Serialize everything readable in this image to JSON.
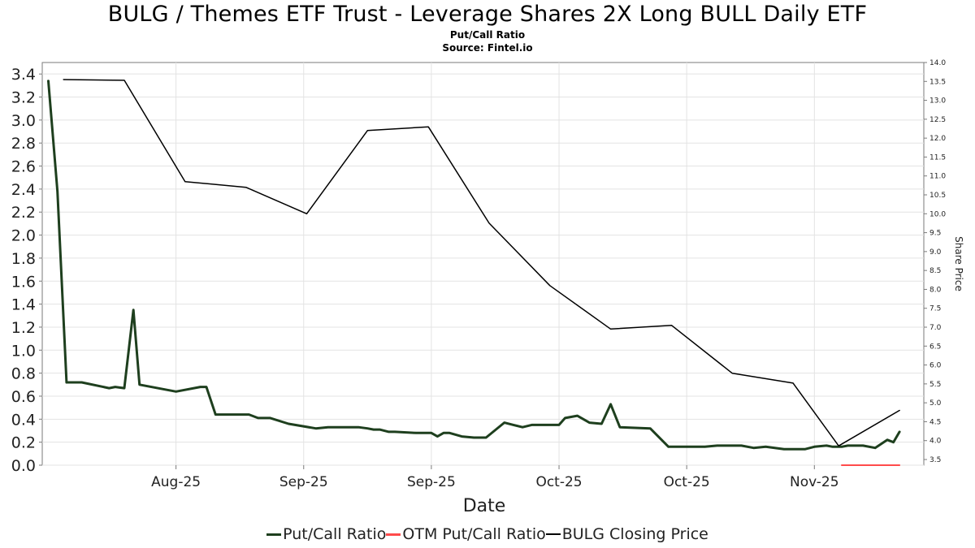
{
  "title": "BULG / Themes ETF Trust - Leverage Shares 2X Long BULL Daily ETF",
  "subtitle": "Put/Call Ratio",
  "source": "Source: Fintel.io",
  "chart_data": {
    "type": "line",
    "xlabel": "Date",
    "ylabel_left": "",
    "ylabel_right": "Share Price",
    "x_tick_labels": [
      "Aug-25",
      "Sep-25",
      "Sep-25",
      "Oct-25",
      "Oct-25",
      "Nov-25"
    ],
    "x_tick_days": [
      21,
      42,
      63,
      84,
      105,
      126
    ],
    "x_range_days": [
      -1,
      144
    ],
    "left_axis": {
      "range": [
        0,
        3.5
      ],
      "ticks": [
        0.0,
        0.2,
        0.4,
        0.6,
        0.8,
        1.0,
        1.2,
        1.4,
        1.6,
        1.8,
        2.0,
        2.2,
        2.4,
        2.6,
        2.8,
        3.0,
        3.2,
        3.4
      ]
    },
    "right_axis": {
      "range": [
        3.35,
        14.0
      ],
      "ticks": [
        3.5,
        4.0,
        4.5,
        5.0,
        5.5,
        6.0,
        6.5,
        7.0,
        7.5,
        8.0,
        8.5,
        9.0,
        9.5,
        10.0,
        10.5,
        11.0,
        11.5,
        12.0,
        12.5,
        13.0,
        13.5,
        14.0
      ]
    },
    "grid": true,
    "legend_position": "bottom-center",
    "series": [
      {
        "name": "Put/Call Ratio",
        "axis": "left",
        "color": "#1e3f1e",
        "width": 3,
        "x": [
          0,
          1.5,
          3,
          4,
          5.5,
          10,
          11,
          12.5,
          14,
          15,
          21,
          25,
          26,
          27.5,
          29,
          33,
          34.5,
          35.5,
          36.5,
          39.5,
          44,
          46,
          51,
          52.5,
          53.5,
          54.5,
          56,
          57,
          60.5,
          62,
          63,
          64,
          65,
          66,
          68,
          70,
          72,
          75,
          76.5,
          78,
          79.5,
          80.5,
          81.5,
          82.5,
          84,
          85,
          87,
          89,
          91,
          92.5,
          94,
          99,
          102,
          103,
          105,
          106,
          108,
          110,
          112,
          114,
          116,
          118,
          121,
          122,
          123.5,
          124.5,
          126,
          128,
          129,
          130.5,
          131.5,
          132.5,
          134,
          136,
          138,
          139,
          140
        ],
        "y": [
          3.34,
          2.38,
          0.72,
          0.72,
          0.72,
          0.67,
          0.68,
          0.67,
          1.35,
          0.7,
          0.64,
          0.68,
          0.68,
          0.44,
          0.44,
          0.44,
          0.41,
          0.41,
          0.41,
          0.36,
          0.32,
          0.33,
          0.33,
          0.32,
          0.31,
          0.31,
          0.29,
          0.29,
          0.28,
          0.28,
          0.28,
          0.25,
          0.28,
          0.28,
          0.25,
          0.24,
          0.24,
          0.37,
          0.35,
          0.33,
          0.35,
          0.35,
          0.35,
          0.35,
          0.35,
          0.41,
          0.43,
          0.37,
          0.36,
          0.53,
          0.33,
          0.32,
          0.16,
          0.16,
          0.16,
          0.16,
          0.16,
          0.17,
          0.17,
          0.17,
          0.15,
          0.16,
          0.14,
          0.14,
          0.14,
          0.14,
          0.16,
          0.17,
          0.16,
          0.16,
          0.17,
          0.17,
          0.17,
          0.15,
          0.22,
          0.2,
          0.29
        ]
      },
      {
        "name": "OTM Put/Call Ratio",
        "axis": "left",
        "color": "#ff4b4b",
        "width": 2,
        "x": [
          130.5,
          140
        ],
        "y": [
          0.0,
          0.0
        ]
      },
      {
        "name": "BULG Closing Price",
        "axis": "right",
        "color": "#000000",
        "width": 1.5,
        "x": [
          2.5,
          12.5,
          22.5,
          32.5,
          42.5,
          52.5,
          62.5,
          72.5,
          82.5,
          92.5,
          102.5,
          112.5,
          122.5,
          130,
          140
        ],
        "y": [
          13.55,
          13.53,
          10.85,
          10.7,
          10.0,
          12.2,
          12.3,
          9.75,
          8.1,
          6.95,
          7.05,
          5.78,
          5.52,
          3.86,
          4.8
        ]
      }
    ]
  }
}
